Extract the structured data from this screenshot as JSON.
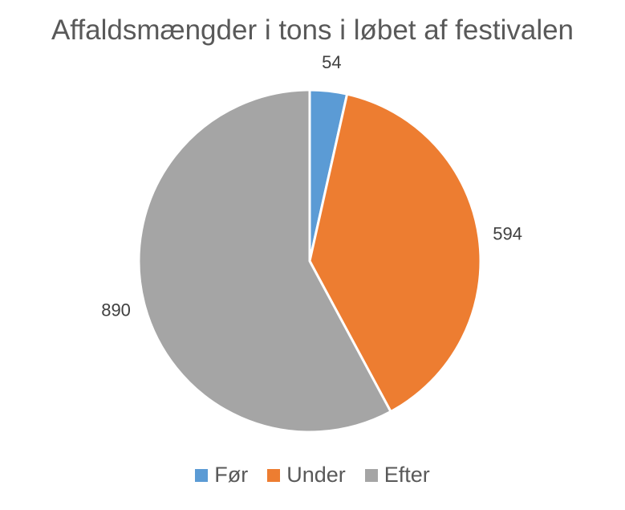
{
  "chart_data": {
    "type": "pie",
    "title": "Affaldsmængder i tons i løbet af festivalen",
    "categories": [
      "Før",
      "Under",
      "Efter"
    ],
    "values": [
      54,
      594,
      890
    ],
    "colors": [
      "#5B9BD5",
      "#ED7D31",
      "#A5A5A5"
    ],
    "data_labels": [
      "54",
      "594",
      "890"
    ],
    "legend": {
      "position": "bottom",
      "items": [
        "Før",
        "Under",
        "Efter"
      ]
    },
    "start_angle": "12 o'clock",
    "direction": "clockwise"
  }
}
